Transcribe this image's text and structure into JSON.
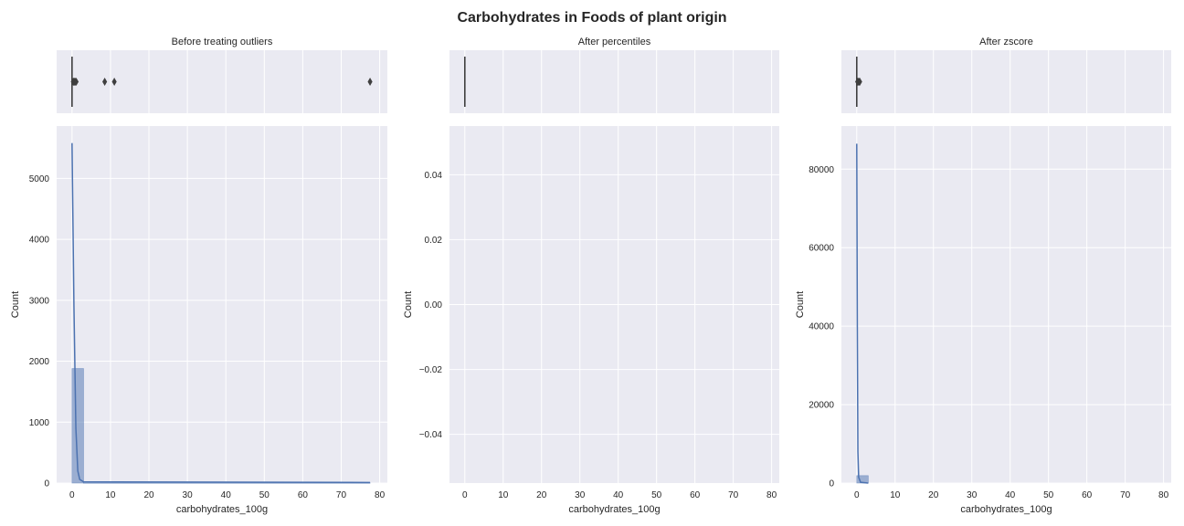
{
  "figure": {
    "title": "Carbohydrates in Foods of plant origin"
  },
  "style": {
    "background": "#eaeaf2",
    "grid": "#ffffff",
    "bar_fill": "#4c72b0",
    "bar_opacity": 0.5,
    "kde": "#4c72b0",
    "box": "#3f3f3f"
  },
  "chart_data": [
    {
      "type": "box+histogram",
      "title": "Before treating outliers",
      "xlabel": "carbohydrates_100g",
      "ylabel": "Count",
      "xlim": [
        -4,
        82
      ],
      "xticks": [
        0,
        10,
        20,
        30,
        40,
        50,
        60,
        70,
        80
      ],
      "xtick_labels": [
        "0",
        "10",
        "20",
        "30",
        "40",
        "50",
        "60",
        "70",
        "80"
      ],
      "ylim": [
        0,
        5860
      ],
      "yticks": [
        0,
        1000,
        2000,
        3000,
        4000,
        5000
      ],
      "ytick_labels": [
        "0",
        "1000",
        "2000",
        "3000",
        "4000",
        "5000"
      ],
      "bins": [
        {
          "x0": 0,
          "x1": 3,
          "count": 1880
        },
        {
          "x0": 3,
          "x1": 77.5,
          "count": 8
        }
      ],
      "kde": [
        [
          0,
          5580
        ],
        [
          0.5,
          2900
        ],
        [
          1,
          900
        ],
        [
          1.5,
          200
        ],
        [
          2,
          60
        ],
        [
          3,
          20
        ],
        [
          77.5,
          10
        ]
      ],
      "boxplot": {
        "median": 0,
        "q1": 0,
        "q3": 0,
        "whisker_low": 0,
        "whisker_high": 0,
        "outliers": [
          0.3,
          0.5,
          0.7,
          0.9,
          1.1,
          8.5,
          11,
          77.5
        ]
      }
    },
    {
      "type": "box+histogram",
      "title": "After percentiles",
      "xlabel": "carbohydrates_100g",
      "ylabel": "Count",
      "xlim": [
        -4,
        82
      ],
      "xticks": [
        0,
        10,
        20,
        30,
        40,
        50,
        60,
        70,
        80
      ],
      "xtick_labels": [
        "0",
        "10",
        "20",
        "30",
        "40",
        "50",
        "60",
        "70",
        "80"
      ],
      "ylim": [
        -0.055,
        0.055
      ],
      "yticks": [
        -0.04,
        -0.02,
        0,
        0.02,
        0.04
      ],
      "ytick_labels": [
        "−0.04",
        "−0.02",
        "0.00",
        "0.02",
        "0.04"
      ],
      "bins": [],
      "kde": [],
      "boxplot": {
        "median": 0,
        "q1": 0,
        "q3": 0,
        "whisker_low": 0,
        "whisker_high": 0,
        "outliers": []
      }
    },
    {
      "type": "box+histogram",
      "title": "After zscore",
      "xlabel": "carbohydrates_100g",
      "ylabel": "Count",
      "xlim": [
        -4,
        82
      ],
      "xticks": [
        0,
        10,
        20,
        30,
        40,
        50,
        60,
        70,
        80
      ],
      "xtick_labels": [
        "0",
        "10",
        "20",
        "30",
        "40",
        "50",
        "60",
        "70",
        "80"
      ],
      "ylim": [
        0,
        91000
      ],
      "yticks": [
        0,
        20000,
        40000,
        60000,
        80000
      ],
      "ytick_labels": [
        "0",
        "20000",
        "40000",
        "60000",
        "80000"
      ],
      "bins": [
        {
          "x0": 0,
          "x1": 3,
          "count": 1900
        }
      ],
      "kde": [
        [
          0,
          86500
        ],
        [
          0.15,
          40000
        ],
        [
          0.3,
          8000
        ],
        [
          0.5,
          1500
        ],
        [
          1,
          200
        ],
        [
          3,
          0
        ]
      ],
      "boxplot": {
        "median": 0,
        "q1": 0,
        "q3": 0,
        "whisker_low": 0,
        "whisker_high": 0,
        "outliers": [
          0.2,
          0.4,
          0.6,
          0.8
        ]
      }
    }
  ]
}
